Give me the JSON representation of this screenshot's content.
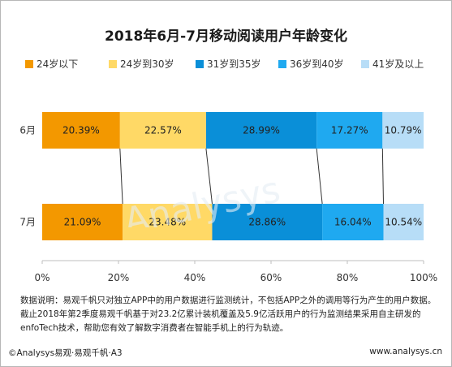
{
  "chart_data": {
    "type": "bar",
    "orientation": "horizontal",
    "stacked": true,
    "title": "2018年6月-7月移动阅读用户年龄变化",
    "categories": [
      "6月",
      "7月"
    ],
    "series": [
      {
        "name": "24岁以下",
        "color": "#f39800",
        "values": [
          20.39,
          21.09
        ],
        "labels": [
          "20.39%",
          "21.09%"
        ]
      },
      {
        "name": "24岁到30岁",
        "color": "#ffd966",
        "values": [
          22.57,
          23.48
        ],
        "labels": [
          "22.57%",
          "23.48%"
        ]
      },
      {
        "name": "31岁到35岁",
        "color": "#0a8fd8",
        "values": [
          28.99,
          28.86
        ],
        "labels": [
          "28.99%",
          "28.86%"
        ]
      },
      {
        "name": "36岁到40岁",
        "color": "#1fa9f0",
        "values": [
          17.27,
          16.04
        ],
        "labels": [
          "17.27%",
          "16.04%"
        ]
      },
      {
        "name": "41岁及以上",
        "color": "#b7ddf7",
        "values": [
          10.79,
          10.54
        ],
        "labels": [
          "10.79%",
          "10.54%"
        ]
      }
    ],
    "xlim": [
      0,
      100
    ],
    "xticks": [
      0,
      20,
      40,
      60,
      80,
      100
    ],
    "xtick_labels": [
      "0%",
      "20%",
      "40%",
      "60%",
      "80%",
      "100%"
    ],
    "legend_position": "top",
    "grid": false
  },
  "note": {
    "line1": "数据说明：易观千帆只对独立APP中的用户数据进行监测统计，不包括APP之外的调用等行为产生的用户数据。",
    "line2": "截止2018年第2季度易观千帆基于对23.2亿累计装机覆盖及5.9亿活跃用户的行为监测结果采用自主研发的",
    "line3": "enfoTech技术，帮助您有效了解数字消费者在智能手机上的行为轨迹。"
  },
  "footer": {
    "source": "©Analysys易观·易观千帆·A3",
    "website": "www.analysys.cn"
  }
}
